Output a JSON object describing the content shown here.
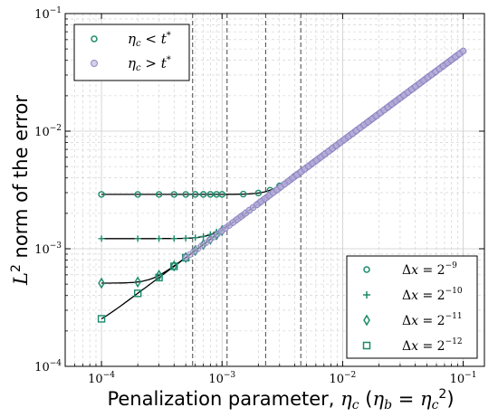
{
  "chart_data": {
    "type": "scatter",
    "title": "",
    "xlabel": "Penalization parameter, ηc (ηb = ηc²)",
    "ylabel": "L² norm of the error",
    "x_scale": "log",
    "y_scale": "log",
    "xlim": [
      5e-05,
      0.15
    ],
    "ylim": [
      0.0001,
      0.1
    ],
    "x_ticks": [
      {
        "value": 0.0001,
        "label": "10⁻⁴"
      },
      {
        "value": 0.001,
        "label": "10⁻³"
      },
      {
        "value": 0.01,
        "label": "10⁻²"
      },
      {
        "value": 0.1,
        "label": "10⁻¹"
      }
    ],
    "y_ticks": [
      {
        "value": 0.0001,
        "label": "10⁻⁴"
      },
      {
        "value": 0.001,
        "label": "10⁻³"
      },
      {
        "value": 0.01,
        "label": "10⁻²"
      },
      {
        "value": 0.1,
        "label": "10⁻¹"
      }
    ],
    "grid": true,
    "threshold_lines_x": [
      0.00057,
      0.0011,
      0.0023,
      0.0045
    ],
    "legend_regime": {
      "placement": "top-left",
      "entries": [
        {
          "label": "ηc < t*",
          "marker": "circle",
          "color": "#1b8a6b"
        },
        {
          "label": "ηc > t*",
          "marker": "circle",
          "color": "#9b93c9"
        }
      ]
    },
    "legend_resolution": {
      "placement": "bottom-right",
      "entries": [
        {
          "label": "Δx = 2⁻⁹",
          "marker": "circle"
        },
        {
          "label": "Δx = 2⁻¹⁰",
          "marker": "plus"
        },
        {
          "label": "Δx = 2⁻¹¹",
          "marker": "diamond"
        },
        {
          "label": "Δx = 2⁻¹²",
          "marker": "square"
        }
      ]
    },
    "asymptote": {
      "x": [
        0.003,
        0.1
      ],
      "y": [
        0.0033,
        0.048
      ]
    },
    "series": [
      {
        "marker": "circle",
        "plateau": 0.0029,
        "x": [
          0.0001,
          0.0002,
          0.0003,
          0.0004,
          0.0005,
          0.0006,
          0.0007,
          0.0008,
          0.0009,
          0.001,
          0.0015,
          0.002,
          0.0025,
          0.003,
          0.004
        ]
      },
      {
        "marker": "plus",
        "plateau": 0.00122,
        "x": [
          0.0001,
          0.0002,
          0.0003,
          0.0004,
          0.0005,
          0.0006,
          0.0007,
          0.0008,
          0.0009,
          0.001,
          0.0015,
          0.002
        ]
      },
      {
        "marker": "diamond",
        "plateau": 0.00051,
        "x": [
          0.0001,
          0.0002,
          0.0003,
          0.0004,
          0.0005,
          0.0006,
          0.0007,
          0.0008,
          0.0009,
          0.001
        ]
      },
      {
        "marker": "square",
        "plateau": 0.00021,
        "x": [
          0.0001,
          0.0002,
          0.0003,
          0.0004,
          0.0005
        ]
      }
    ],
    "colors": {
      "below": "#1b8a6b",
      "above": "#9b93c9",
      "line": "#000000",
      "grid": "#cccccc"
    }
  }
}
